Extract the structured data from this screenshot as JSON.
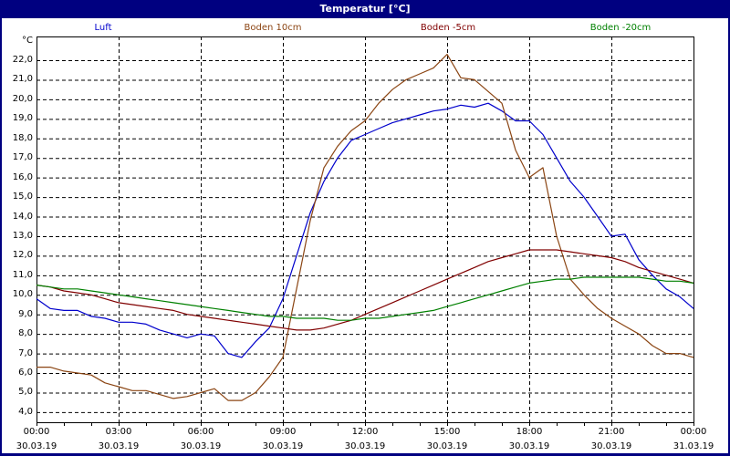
{
  "window": {
    "title": "Temperatur [°C]",
    "titlebar_color": "#000080"
  },
  "legend": [
    {
      "label": "Luft",
      "color": "#0000cc"
    },
    {
      "label": "Boden 10cm",
      "color": "#8b4513"
    },
    {
      "label": "Boden -5cm",
      "color": "#800000"
    },
    {
      "label": "Boden -20cm",
      "color": "#008000"
    }
  ],
  "yaxis": {
    "unit": "°C",
    "ticks": [
      "22,0",
      "21,0",
      "20,0",
      "19,0",
      "18,0",
      "17,0",
      "16,0",
      "15,0",
      "14,0",
      "13,0",
      "12,0",
      "11,0",
      "10,0",
      "9,0",
      "8,0",
      "7,0",
      "6,0",
      "5,0",
      "4,0"
    ]
  },
  "xaxis": {
    "ticks": [
      {
        "time": "00:00",
        "date": "30.03.19"
      },
      {
        "time": "03:00",
        "date": "30.03.19"
      },
      {
        "time": "06:00",
        "date": "30.03.19"
      },
      {
        "time": "09:00",
        "date": "30.03.19"
      },
      {
        "time": "12:00",
        "date": "30.03.19"
      },
      {
        "time": "15:00",
        "date": "30.03.19"
      },
      {
        "time": "18:00",
        "date": "30.03.19"
      },
      {
        "time": "21:00",
        "date": "30.03.19"
      },
      {
        "time": "00:00",
        "date": "31.03.19"
      }
    ]
  },
  "chart_data": {
    "type": "line",
    "title": "Temperatur [°C]",
    "xlabel": "",
    "ylabel": "°C",
    "ylim": [
      3.5,
      23.2
    ],
    "xlim": [
      "30.03.19 00:00",
      "31.03.19 00:00"
    ],
    "grid": true,
    "legend_position": "top",
    "x": [
      "00:00",
      "00:30",
      "01:00",
      "01:30",
      "02:00",
      "02:30",
      "03:00",
      "03:30",
      "04:00",
      "04:30",
      "05:00",
      "05:30",
      "06:00",
      "06:30",
      "07:00",
      "07:30",
      "08:00",
      "08:30",
      "09:00",
      "09:30",
      "10:00",
      "10:30",
      "11:00",
      "11:30",
      "12:00",
      "12:30",
      "13:00",
      "13:30",
      "14:00",
      "14:30",
      "15:00",
      "15:30",
      "16:00",
      "16:30",
      "17:00",
      "17:30",
      "18:00",
      "18:30",
      "19:00",
      "19:30",
      "20:00",
      "20:30",
      "21:00",
      "21:30",
      "22:00",
      "22:30",
      "23:00",
      "23:30",
      "24:00"
    ],
    "series": [
      {
        "name": "Luft",
        "color": "#0000cc",
        "values": [
          9.8,
          9.3,
          9.2,
          9.2,
          8.9,
          8.8,
          8.6,
          8.6,
          8.5,
          8.2,
          8.0,
          7.8,
          8.0,
          7.9,
          7.0,
          6.8,
          7.6,
          8.3,
          9.8,
          12.0,
          14.2,
          15.8,
          17.0,
          17.9,
          18.2,
          18.5,
          18.8,
          19.0,
          19.2,
          19.4,
          19.5,
          19.7,
          19.6,
          19.8,
          19.4,
          18.9,
          18.9,
          18.2,
          17.0,
          15.8,
          15.0,
          14.0,
          13.0,
          13.1,
          11.8,
          11.0,
          10.3,
          9.9,
          9.3
        ]
      },
      {
        "name": "Boden 10cm",
        "color": "#8b4513",
        "values": [
          6.3,
          6.3,
          6.1,
          6.0,
          5.9,
          5.5,
          5.3,
          5.1,
          5.1,
          4.9,
          4.7,
          4.8,
          5.0,
          5.2,
          4.6,
          4.6,
          5.0,
          5.8,
          6.8,
          10.3,
          13.8,
          16.5,
          17.6,
          18.4,
          18.9,
          19.8,
          20.5,
          21.0,
          21.3,
          21.6,
          22.3,
          21.1,
          21.0,
          20.4,
          19.8,
          17.4,
          16.0,
          16.5,
          13.0,
          10.8,
          10.0,
          9.3,
          8.8,
          8.4,
          8.0,
          7.4,
          7.0,
          7.0,
          6.8
        ]
      },
      {
        "name": "Boden -5cm",
        "color": "#800000",
        "values": [
          10.5,
          10.4,
          10.2,
          10.1,
          10.0,
          9.8,
          9.6,
          9.5,
          9.4,
          9.3,
          9.2,
          9.0,
          8.9,
          8.8,
          8.7,
          8.6,
          8.5,
          8.4,
          8.3,
          8.2,
          8.2,
          8.3,
          8.5,
          8.7,
          9.0,
          9.3,
          9.6,
          9.9,
          10.2,
          10.5,
          10.8,
          11.1,
          11.4,
          11.7,
          11.9,
          12.1,
          12.3,
          12.3,
          12.3,
          12.2,
          12.1,
          12.0,
          11.9,
          11.7,
          11.4,
          11.2,
          11.0,
          10.8,
          10.6
        ]
      },
      {
        "name": "Boden -20cm",
        "color": "#008000",
        "values": [
          10.5,
          10.4,
          10.3,
          10.3,
          10.2,
          10.1,
          10.0,
          9.9,
          9.8,
          9.7,
          9.6,
          9.5,
          9.4,
          9.3,
          9.2,
          9.1,
          9.0,
          8.9,
          8.9,
          8.8,
          8.8,
          8.8,
          8.7,
          8.7,
          8.8,
          8.8,
          8.9,
          9.0,
          9.1,
          9.2,
          9.4,
          9.6,
          9.8,
          10.0,
          10.2,
          10.4,
          10.6,
          10.7,
          10.8,
          10.8,
          10.9,
          10.9,
          10.9,
          10.9,
          10.9,
          10.8,
          10.7,
          10.7,
          10.6
        ]
      }
    ]
  }
}
